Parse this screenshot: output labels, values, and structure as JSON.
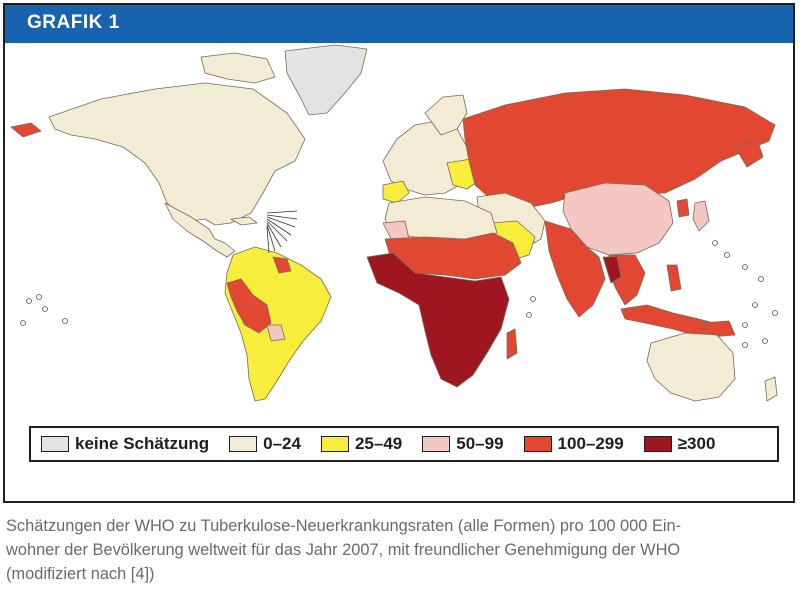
{
  "header": {
    "title": "GRAFIK 1"
  },
  "colors": {
    "header_bg": "#1863ad",
    "no_estimate": "#e3e3e3",
    "r0_24": "#f2ecd4",
    "r25_49": "#f6ee3a",
    "r50_99": "#f4c7c3",
    "r100_299": "#e24732",
    "r300plus": "#9d1620"
  },
  "legend": {
    "items": [
      {
        "label": "keine Schätzung",
        "color": "#e3e3e3"
      },
      {
        "label": "0–24",
        "color": "#f2ecd4"
      },
      {
        "label": "25–49",
        "color": "#f6ee3a"
      },
      {
        "label": "50–99",
        "color": "#f4c7c3"
      },
      {
        "label": "100–299",
        "color": "#e24732"
      },
      {
        "label": "≥300",
        "color": "#9d1620"
      }
    ]
  },
  "map": {
    "regions": [
      {
        "name": "Grönland",
        "category": "keine Schätzung"
      },
      {
        "name": "Nordamerika",
        "category": "0–24"
      },
      {
        "name": "Europa",
        "category": "0–24"
      },
      {
        "name": "Australien",
        "category": "0–24"
      },
      {
        "name": "Brasilien",
        "category": "25–49"
      },
      {
        "name": "China",
        "category": "50–99"
      },
      {
        "name": "Russland",
        "category": "100–299"
      },
      {
        "name": "Indien",
        "category": "100–299"
      },
      {
        "name": "Südostasien",
        "category": "100–299"
      },
      {
        "name": "Afrika (Ost/Süd)",
        "category": "≥300"
      }
    ]
  },
  "caption": {
    "line1": "Schätzungen der WHO zu Tuberkulose-Neuerkrankungsraten (alle Formen) pro 100 000 Ein-",
    "line2": "wohner der Bevölkerung weltweit für das Jahr 2007, mit freundlicher Genehmigung der WHO",
    "line3": "(modifiziert nach [4])"
  }
}
